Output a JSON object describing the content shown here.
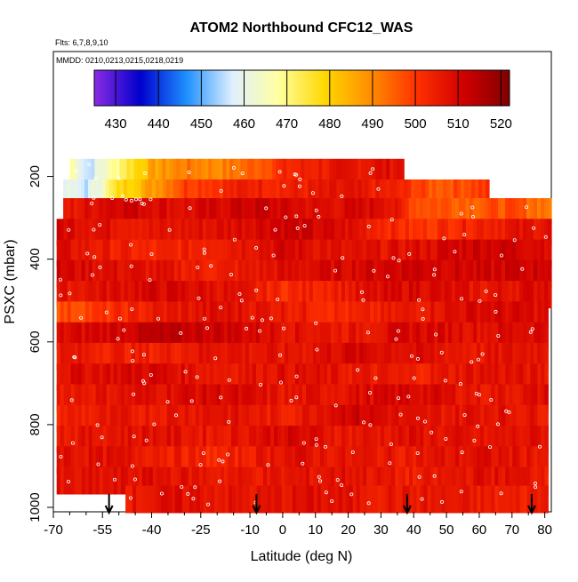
{
  "chart_data": {
    "type": "heatmap",
    "title": "ATOM2 Northbound CFC12_WAS",
    "subtitle_flights": "Flts: 6,7,8,9,10",
    "subtitle_dates": "MMDD: 0210,0213,0215,0218,0219",
    "xlabel": "Latitude (deg N)",
    "ylabel": "PSXC (mbar)",
    "xlim": [
      -70,
      82
    ],
    "ylim": [
      1000,
      100
    ],
    "x_ticks": [
      -70,
      -55,
      -40,
      -25,
      -10,
      0,
      10,
      20,
      30,
      40,
      50,
      60,
      70,
      80
    ],
    "x_minor_ticks": [
      -65,
      -60,
      -50,
      -45,
      -35,
      -30,
      -20,
      -15,
      -5,
      5,
      15,
      25,
      35,
      45,
      55,
      65,
      75
    ],
    "y_ticks": [
      200,
      400,
      600,
      800,
      1000
    ],
    "colorbar": {
      "ticks": [
        430,
        440,
        450,
        460,
        470,
        480,
        490,
        500,
        510,
        520
      ],
      "range": [
        425,
        522
      ],
      "colors": [
        "#8a2be2",
        "#0000cd",
        "#1e90ff",
        "#e0f0ff",
        "#ffffa0",
        "#ffd700",
        "#ff8c00",
        "#ff3000",
        "#d00000",
        "#800000"
      ]
    },
    "arrows_lat": [
      -53,
      -8,
      38,
      76
    ],
    "rows": [
      {
        "p": 190,
        "x": [
          -65,
          37
        ],
        "values": [
          [
            -65,
            468
          ],
          [
            -60,
            455
          ],
          [
            -50,
            472
          ],
          [
            -40,
            486
          ],
          [
            -30,
            492
          ],
          [
            -20,
            490
          ],
          [
            -10,
            495
          ],
          [
            0,
            502
          ],
          [
            10,
            505
          ],
          [
            20,
            506
          ],
          [
            30,
            508
          ]
        ]
      },
      {
        "p": 240,
        "x": [
          -67,
          63
        ],
        "values": [
          [
            -67,
            460
          ],
          [
            -60,
            456
          ],
          [
            -50,
            478
          ],
          [
            -40,
            488
          ],
          [
            -30,
            500
          ],
          [
            -20,
            502
          ],
          [
            -10,
            505
          ],
          [
            0,
            504
          ],
          [
            20,
            506
          ],
          [
            35,
            503
          ],
          [
            45,
            496
          ],
          [
            55,
            498
          ],
          [
            62,
            500
          ]
        ]
      },
      {
        "p": 285,
        "x": [
          -67,
          82
        ],
        "values": [
          [
            -67,
            505
          ],
          [
            -50,
            512
          ],
          [
            -30,
            508
          ],
          [
            -10,
            512
          ],
          [
            10,
            508
          ],
          [
            30,
            510
          ],
          [
            40,
            498
          ],
          [
            55,
            496
          ],
          [
            70,
            497
          ],
          [
            82,
            492
          ]
        ]
      },
      {
        "p": 335,
        "x": [
          -69,
          82
        ],
        "values": [
          [
            -69,
            510
          ],
          [
            -40,
            506
          ],
          [
            -20,
            508
          ],
          [
            0,
            512
          ],
          [
            20,
            508
          ],
          [
            40,
            500
          ],
          [
            60,
            505
          ],
          [
            82,
            508
          ]
        ]
      },
      {
        "p": 385,
        "x": [
          -69,
          82
        ],
        "values": [
          [
            -69,
            508
          ],
          [
            -40,
            502
          ],
          [
            -20,
            506
          ],
          [
            0,
            510
          ],
          [
            20,
            506
          ],
          [
            40,
            508
          ],
          [
            60,
            512
          ],
          [
            82,
            510
          ]
        ]
      },
      {
        "p": 435,
        "x": [
          -69,
          82
        ],
        "values": [
          [
            -69,
            510
          ],
          [
            -40,
            507
          ],
          [
            -20,
            504
          ],
          [
            0,
            508
          ],
          [
            20,
            510
          ],
          [
            40,
            512
          ],
          [
            60,
            510
          ],
          [
            82,
            512
          ]
        ]
      },
      {
        "p": 485,
        "x": [
          -69,
          82
        ],
        "values": [
          [
            -69,
            506
          ],
          [
            -40,
            510
          ],
          [
            -20,
            508
          ],
          [
            0,
            502
          ],
          [
            20,
            506
          ],
          [
            40,
            510
          ],
          [
            60,
            506
          ],
          [
            82,
            510
          ]
        ]
      },
      {
        "p": 535,
        "x": [
          -69,
          81
        ],
        "values": [
          [
            -69,
            497
          ],
          [
            -55,
            500
          ],
          [
            -40,
            505
          ],
          [
            -20,
            508
          ],
          [
            0,
            506
          ],
          [
            20,
            502
          ],
          [
            40,
            506
          ],
          [
            60,
            510
          ],
          [
            81,
            508
          ]
        ]
      },
      {
        "p": 585,
        "x": [
          -69,
          81
        ],
        "values": [
          [
            -69,
            508
          ],
          [
            -40,
            513
          ],
          [
            -20,
            512
          ],
          [
            0,
            508
          ],
          [
            20,
            506
          ],
          [
            40,
            510
          ],
          [
            60,
            508
          ],
          [
            81,
            510
          ]
        ]
      },
      {
        "p": 635,
        "x": [
          -69,
          81
        ],
        "values": [
          [
            -69,
            506
          ],
          [
            -40,
            504
          ],
          [
            -20,
            508
          ],
          [
            0,
            506
          ],
          [
            20,
            510
          ],
          [
            40,
            508
          ],
          [
            60,
            506
          ],
          [
            81,
            508
          ]
        ]
      },
      {
        "p": 685,
        "x": [
          -69,
          81
        ],
        "values": [
          [
            -69,
            508
          ],
          [
            -40,
            510
          ],
          [
            -20,
            506
          ],
          [
            0,
            508
          ],
          [
            20,
            506
          ],
          [
            40,
            504
          ],
          [
            60,
            508
          ],
          [
            81,
            506
          ]
        ]
      },
      {
        "p": 735,
        "x": [
          -69,
          81
        ],
        "values": [
          [
            -69,
            506
          ],
          [
            -40,
            508
          ],
          [
            -20,
            510
          ],
          [
            0,
            506
          ],
          [
            20,
            508
          ],
          [
            40,
            510
          ],
          [
            60,
            506
          ],
          [
            81,
            508
          ]
        ]
      },
      {
        "p": 785,
        "x": [
          -69,
          81
        ],
        "values": [
          [
            -69,
            504
          ],
          [
            -40,
            506
          ],
          [
            -20,
            508
          ],
          [
            0,
            504
          ],
          [
            20,
            512
          ],
          [
            40,
            506
          ],
          [
            60,
            508
          ],
          [
            81,
            506
          ]
        ]
      },
      {
        "p": 835,
        "x": [
          -69,
          81
        ],
        "values": [
          [
            -69,
            506
          ],
          [
            -40,
            508
          ],
          [
            -20,
            506
          ],
          [
            0,
            510
          ],
          [
            20,
            506
          ],
          [
            40,
            508
          ],
          [
            60,
            506
          ],
          [
            81,
            508
          ]
        ]
      },
      {
        "p": 885,
        "x": [
          -69,
          81
        ],
        "values": [
          [
            -69,
            508
          ],
          [
            -40,
            506
          ],
          [
            -20,
            502
          ],
          [
            0,
            508
          ],
          [
            20,
            506
          ],
          [
            40,
            506
          ],
          [
            60,
            508
          ],
          [
            81,
            506
          ]
        ]
      },
      {
        "p": 935,
        "x": [
          -69,
          81
        ],
        "values": [
          [
            -69,
            506
          ],
          [
            -40,
            508
          ],
          [
            -20,
            506
          ],
          [
            0,
            506
          ],
          [
            20,
            508
          ],
          [
            40,
            504
          ],
          [
            60,
            508
          ],
          [
            81,
            506
          ]
        ]
      },
      {
        "p": 980,
        "x": [
          -48,
          81
        ],
        "values": [
          [
            -48,
            506
          ],
          [
            -30,
            508
          ],
          [
            -10,
            506
          ],
          [
            10,
            508
          ],
          [
            30,
            506
          ],
          [
            50,
            506
          ],
          [
            70,
            504
          ],
          [
            81,
            506
          ]
        ]
      }
    ]
  }
}
